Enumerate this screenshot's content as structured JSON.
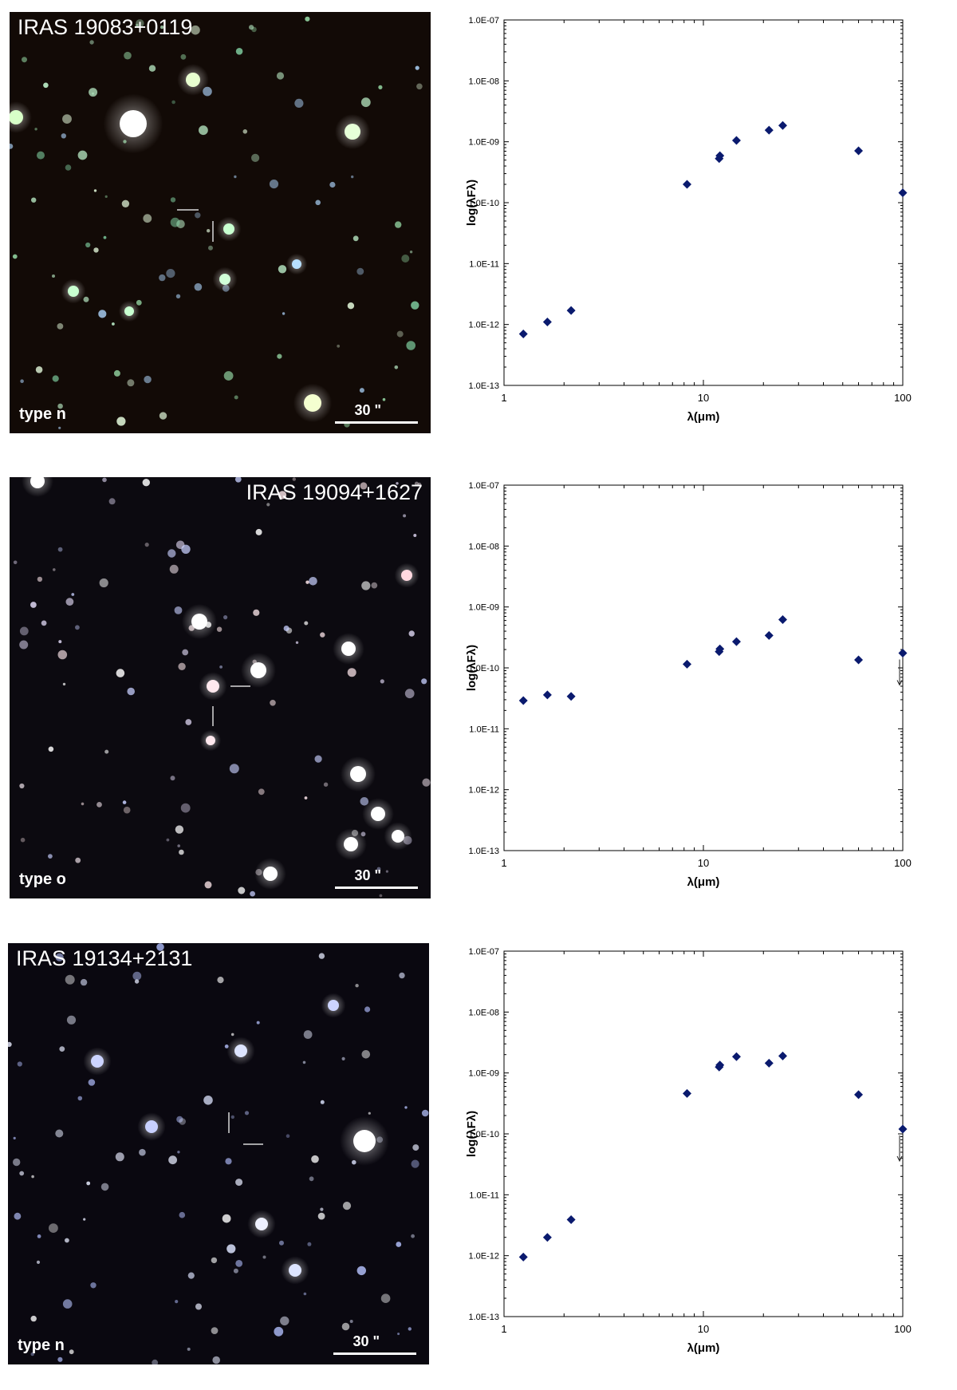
{
  "panels": [
    {
      "image": {
        "title": "IRAS 19083+0119",
        "type_label": "type n",
        "scale_label": "30 \""
      },
      "sky_tint": "green"
    },
    {
      "image": {
        "title": "IRAS 19094+1627",
        "type_label": "type o",
        "scale_label": "30 \""
      },
      "sky_tint": "white"
    },
    {
      "image": {
        "title": "IRAS 19134+2131",
        "type_label": "type n",
        "scale_label": "30 \""
      },
      "sky_tint": "blue"
    }
  ],
  "chart_data": [
    {
      "type": "scatter",
      "xlabel": "λ(μm)",
      "ylabel": "log(λFλ)",
      "xscale": "log",
      "yscale": "log",
      "xlim": [
        1,
        100
      ],
      "ylim": [
        1e-13,
        1e-07
      ],
      "xticks": [
        "1",
        "10",
        "100"
      ],
      "yticks": [
        "1.0E-13",
        "1.0E-12",
        "1.0E-11",
        "1.0E-10",
        "1.0E-09",
        "1.0E-08",
        "1.0E-07"
      ],
      "marker_color": "#0a1a6e",
      "grid": false,
      "points": [
        {
          "x": 1.25,
          "y": 7e-13
        },
        {
          "x": 1.65,
          "y": 1.1e-12
        },
        {
          "x": 2.17,
          "y": 1.7e-12
        },
        {
          "x": 8.28,
          "y": 2e-10
        },
        {
          "x": 12,
          "y": 5.3e-10
        },
        {
          "x": 12.1,
          "y": 5.9e-10
        },
        {
          "x": 14.65,
          "y": 1.05e-09
        },
        {
          "x": 21.34,
          "y": 1.55e-09
        },
        {
          "x": 25,
          "y": 1.85e-09
        },
        {
          "x": 60,
          "y": 7.1e-10
        },
        {
          "x": 100,
          "y": 1.45e-10
        }
      ],
      "upper_limits": []
    },
    {
      "type": "scatter",
      "xlabel": "λ(μm)",
      "ylabel": "log(λFλ)",
      "xscale": "log",
      "yscale": "log",
      "xlim": [
        1,
        100
      ],
      "ylim": [
        1e-13,
        1e-07
      ],
      "xticks": [
        "1",
        "10",
        "100"
      ],
      "yticks": [
        "1.0E-13",
        "1.0E-12",
        "1.0E-11",
        "1.0E-10",
        "1.0E-09",
        "1.0E-08",
        "1.0E-07"
      ],
      "marker_color": "#0a1a6e",
      "grid": false,
      "points": [
        {
          "x": 1.25,
          "y": 2.9e-11
        },
        {
          "x": 1.65,
          "y": 3.6e-11
        },
        {
          "x": 2.17,
          "y": 3.4e-11
        },
        {
          "x": 8.28,
          "y": 1.15e-10
        },
        {
          "x": 12,
          "y": 1.85e-10
        },
        {
          "x": 12.1,
          "y": 2.05e-10
        },
        {
          "x": 14.65,
          "y": 2.7e-10
        },
        {
          "x": 21.34,
          "y": 3.4e-10
        },
        {
          "x": 25,
          "y": 6.2e-10
        },
        {
          "x": 60,
          "y": 1.35e-10
        },
        {
          "x": 100,
          "y": 1.75e-10
        }
      ],
      "upper_limits": [
        {
          "x": 100,
          "y": 1.75e-10
        }
      ]
    },
    {
      "type": "scatter",
      "xlabel": "λ(μm)",
      "ylabel": "log(λFλ)",
      "xscale": "log",
      "yscale": "log",
      "xlim": [
        1,
        100
      ],
      "ylim": [
        1e-13,
        1e-07
      ],
      "xticks": [
        "1",
        "10",
        "100"
      ],
      "yticks": [
        "1.0E-13",
        "1.0E-12",
        "1.0E-11",
        "1.0E-10",
        "1.0E-09",
        "1.0E-08",
        "1.0E-07"
      ],
      "marker_color": "#0a1a6e",
      "grid": false,
      "points": [
        {
          "x": 1.25,
          "y": 9.5e-13
        },
        {
          "x": 1.65,
          "y": 2e-12
        },
        {
          "x": 2.17,
          "y": 3.9e-12
        },
        {
          "x": 8.28,
          "y": 4.6e-10
        },
        {
          "x": 12,
          "y": 1.25e-09
        },
        {
          "x": 12.1,
          "y": 1.35e-09
        },
        {
          "x": 14.65,
          "y": 1.85e-09
        },
        {
          "x": 21.34,
          "y": 1.45e-09
        },
        {
          "x": 25,
          "y": 1.9e-09
        },
        {
          "x": 60,
          "y": 4.4e-10
        },
        {
          "x": 100,
          "y": 1.2e-10
        }
      ],
      "upper_limits": [
        {
          "x": 100,
          "y": 1.2e-10
        }
      ]
    }
  ]
}
